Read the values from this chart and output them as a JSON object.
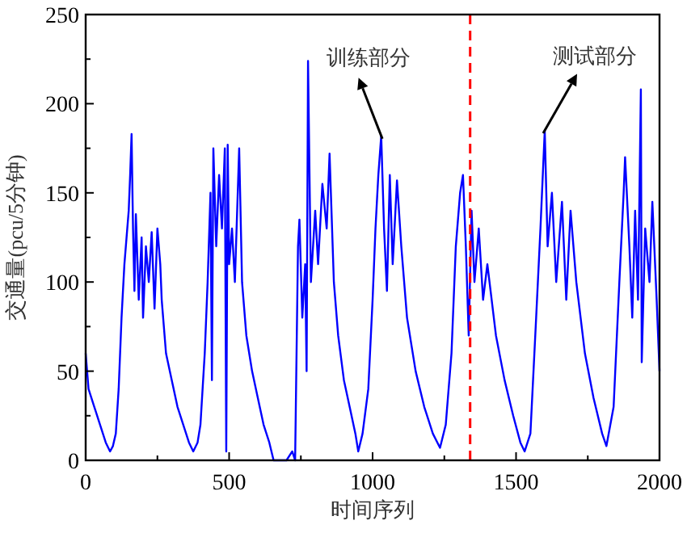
{
  "chart_data": {
    "type": "line",
    "xlabel": "时间序列",
    "ylabel": "交通量(pcu/5分钟)",
    "xlim": [
      0,
      2000
    ],
    "ylim": [
      0,
      250
    ],
    "xticks": [
      0,
      {
        "value": 250,
        "label": null
      },
      500,
      {
        "value": 750,
        "label": null
      },
      1000,
      {
        "value": 1250,
        "label": null
      },
      1500,
      {
        "value": 1750,
        "label": null
      },
      2000
    ],
    "yticks": [
      0,
      {
        "value": 25,
        "label": null
      },
      50,
      {
        "value": 75,
        "label": null
      },
      100,
      {
        "value": 125,
        "label": null
      },
      150,
      {
        "value": 175,
        "label": null
      },
      200,
      {
        "value": 225,
        "label": null
      },
      250
    ],
    "grid": false,
    "line_style": "solid",
    "marker": "none",
    "ref_lines": [
      {
        "axis": "x",
        "value": 1340,
        "color": "#ff0000",
        "line_style": "dashed"
      }
    ],
    "annotations": [
      {
        "text": "训练部分",
        "x": 1030,
        "y": 182
      },
      {
        "text": "测试部分",
        "x": 1600,
        "y": 185
      }
    ],
    "series": [
      {
        "color": "#0000ff",
        "x": [
          0,
          10,
          30,
          50,
          70,
          85,
          95,
          105,
          115,
          125,
          135,
          145,
          150,
          155,
          160,
          165,
          170,
          175,
          185,
          195,
          200,
          210,
          220,
          230,
          240,
          250,
          260,
          265,
          280,
          300,
          320,
          340,
          360,
          375,
          390,
          400,
          415,
          425,
          435,
          440,
          445,
          455,
          465,
          475,
          485,
          490,
          495,
          500,
          510,
          520,
          535,
          545,
          560,
          580,
          600,
          620,
          640,
          655,
          700,
          720,
          730,
          740,
          745,
          755,
          765,
          770,
          775,
          785,
          800,
          810,
          825,
          840,
          850,
          865,
          880,
          900,
          920,
          940,
          950,
          965,
          985,
          1000,
          1010,
          1020,
          1030,
          1040,
          1050,
          1060,
          1070,
          1085,
          1100,
          1120,
          1150,
          1180,
          1210,
          1235,
          1255,
          1275,
          1290,
          1305,
          1315,
          1325,
          1335,
          1345,
          1355,
          1370,
          1385,
          1400,
          1430,
          1460,
          1490,
          1515,
          1530,
          1550,
          1570,
          1585,
          1600,
          1610,
          1625,
          1640,
          1660,
          1675,
          1690,
          1710,
          1740,
          1770,
          1800,
          1815,
          1840,
          1860,
          1875,
          1880,
          1895,
          1905,
          1915,
          1925,
          1935,
          1938,
          1950,
          1965,
          1975,
          1990,
          2000
        ],
        "values": [
          60,
          40,
          30,
          20,
          10,
          5,
          8,
          15,
          40,
          80,
          110,
          130,
          140,
          160,
          183,
          130,
          95,
          138,
          90,
          125,
          80,
          120,
          100,
          128,
          85,
          130,
          110,
          90,
          60,
          45,
          30,
          20,
          10,
          5,
          10,
          20,
          60,
          100,
          150,
          45,
          175,
          120,
          160,
          130,
          175,
          5,
          177,
          110,
          130,
          100,
          175,
          100,
          70,
          50,
          35,
          20,
          10,
          0,
          0,
          5,
          0,
          120,
          135,
          80,
          110,
          50,
          224,
          100,
          140,
          110,
          155,
          130,
          172,
          100,
          70,
          45,
          30,
          15,
          5,
          15,
          40,
          90,
          130,
          160,
          182,
          130,
          95,
          160,
          110,
          157,
          120,
          80,
          50,
          30,
          15,
          7,
          20,
          60,
          120,
          150,
          160,
          120,
          70,
          140,
          100,
          130,
          90,
          110,
          70,
          45,
          25,
          10,
          5,
          15,
          80,
          130,
          185,
          120,
          150,
          100,
          145,
          90,
          140,
          100,
          60,
          35,
          15,
          8,
          30,
          100,
          150,
          170,
          120,
          80,
          140,
          90,
          208,
          55,
          130,
          100,
          145,
          90,
          50
        ]
      }
    ]
  }
}
